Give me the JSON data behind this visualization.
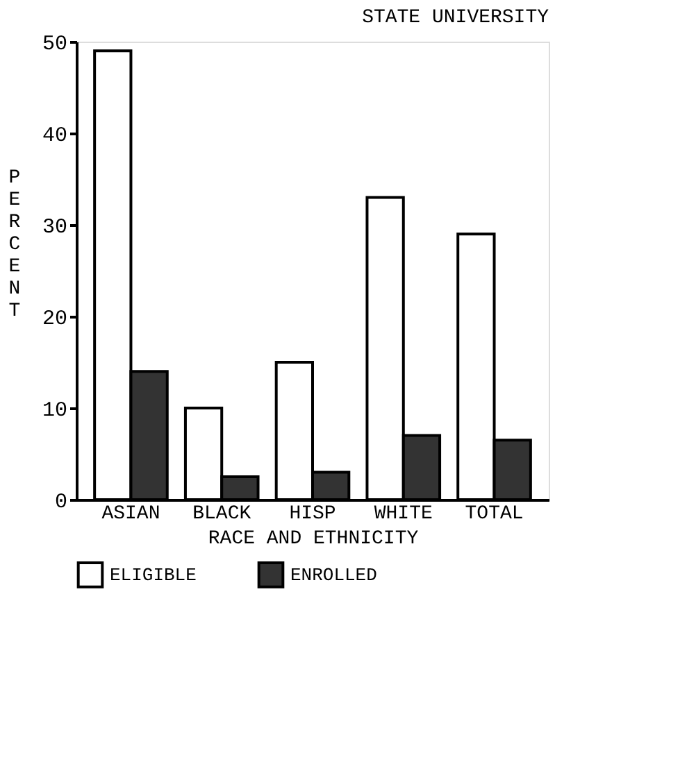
{
  "chart_data": {
    "type": "bar",
    "title": "STATE UNIVERSITY",
    "xlabel": "RACE AND ETHNICITY",
    "ylabel": "PERCENT",
    "categories": [
      "ASIAN",
      "BLACK",
      "HISP",
      "WHITE",
      "TOTAL"
    ],
    "series": [
      {
        "name": "ELIGIBLE",
        "color": "#ffffff",
        "values": [
          49,
          10,
          15,
          33,
          29
        ]
      },
      {
        "name": "ENROLLED",
        "color": "#333333",
        "values": [
          14,
          2.5,
          3,
          7,
          6.5
        ]
      }
    ],
    "ylim": [
      0,
      50
    ],
    "yticks": [
      0,
      10,
      20,
      30,
      40,
      50
    ],
    "grid": false,
    "legend": "bottom left"
  }
}
